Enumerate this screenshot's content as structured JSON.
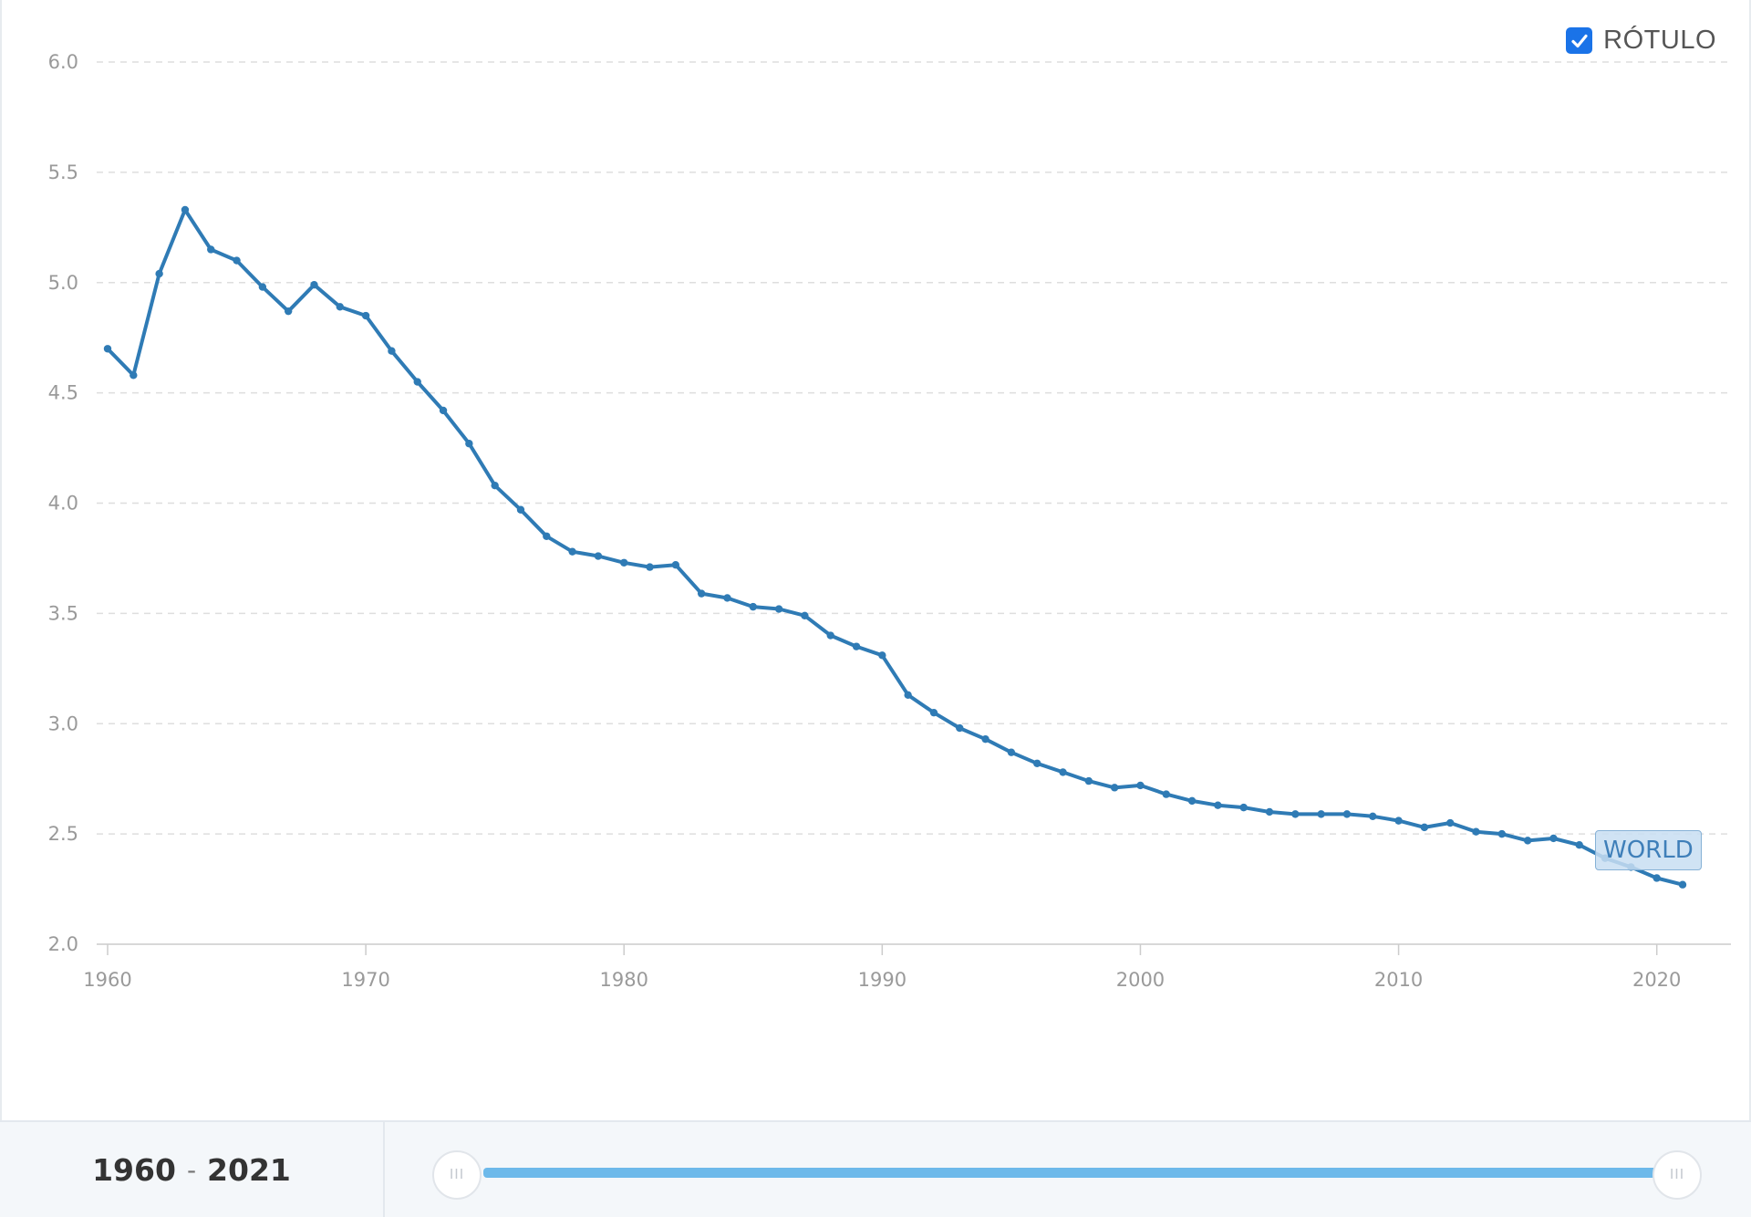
{
  "legend": {
    "label": "RÓTULO",
    "checked": true
  },
  "series_label": "WORLD",
  "footer": {
    "year_start": "1960",
    "year_separator": "-",
    "year_end": "2021"
  },
  "slider": {
    "handle_glyph": "III"
  },
  "colors": {
    "series": "#2f7bb5",
    "accent": "#1a73e8",
    "slider": "#6db9ea"
  },
  "chart_data": {
    "type": "line",
    "title": "",
    "xlabel": "",
    "ylabel": "",
    "xlim": [
      1960,
      2021
    ],
    "ylim": [
      2.0,
      6.0
    ],
    "grid": true,
    "legend_position": "top-right",
    "x_ticks": [
      "1960",
      "1970",
      "1980",
      "1990",
      "2000",
      "2010",
      "2020"
    ],
    "y_ticks": [
      "2.0",
      "2.5",
      "3.0",
      "3.5",
      "4.0",
      "4.5",
      "5.0",
      "5.5",
      "6.0"
    ],
    "x": [
      1960,
      1961,
      1962,
      1963,
      1964,
      1965,
      1966,
      1967,
      1968,
      1969,
      1970,
      1971,
      1972,
      1973,
      1974,
      1975,
      1976,
      1977,
      1978,
      1979,
      1980,
      1981,
      1982,
      1983,
      1984,
      1985,
      1986,
      1987,
      1988,
      1989,
      1990,
      1991,
      1992,
      1993,
      1994,
      1995,
      1996,
      1997,
      1998,
      1999,
      2000,
      2001,
      2002,
      2003,
      2004,
      2005,
      2006,
      2007,
      2008,
      2009,
      2010,
      2011,
      2012,
      2013,
      2014,
      2015,
      2016,
      2017,
      2018,
      2019,
      2020,
      2021
    ],
    "series": [
      {
        "name": "WORLD",
        "values": [
          4.7,
          4.58,
          5.04,
          5.33,
          5.15,
          5.1,
          4.98,
          4.87,
          4.99,
          4.89,
          4.85,
          4.69,
          4.55,
          4.42,
          4.27,
          4.08,
          3.97,
          3.85,
          3.78,
          3.76,
          3.73,
          3.71,
          3.72,
          3.59,
          3.57,
          3.53,
          3.52,
          3.49,
          3.4,
          3.35,
          3.31,
          3.13,
          3.05,
          2.98,
          2.93,
          2.87,
          2.82,
          2.78,
          2.74,
          2.71,
          2.72,
          2.68,
          2.65,
          2.63,
          2.62,
          2.6,
          2.59,
          2.59,
          2.59,
          2.58,
          2.56,
          2.53,
          2.55,
          2.51,
          2.5,
          2.47,
          2.48,
          2.45,
          2.39,
          2.35,
          2.3,
          2.27
        ]
      }
    ]
  }
}
